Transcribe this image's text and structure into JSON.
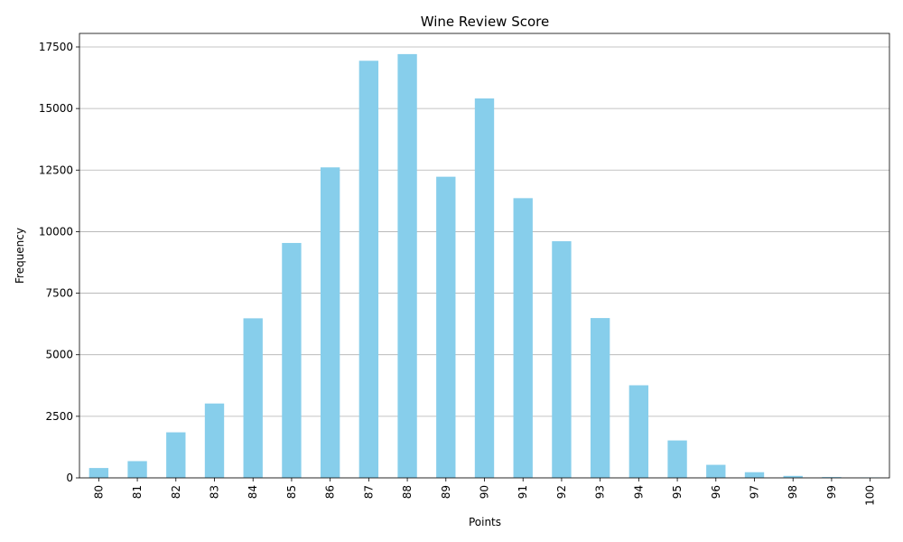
{
  "chart_data": {
    "type": "bar",
    "title": "Wine Review Score",
    "xlabel": "Points",
    "ylabel": "Frequency",
    "ylim": [
      0,
      18050
    ],
    "yticks": [
      0,
      2500,
      5000,
      7500,
      10000,
      12500,
      15000,
      17500
    ],
    "grid": "y",
    "bar_color": "#87ceeb",
    "categories": [
      "80",
      "81",
      "82",
      "83",
      "84",
      "85",
      "86",
      "87",
      "88",
      "89",
      "90",
      "91",
      "92",
      "93",
      "94",
      "95",
      "96",
      "97",
      "98",
      "99",
      "100"
    ],
    "values": [
      400,
      680,
      1850,
      3020,
      6480,
      9540,
      12610,
      16940,
      17210,
      12230,
      15410,
      11360,
      9610,
      6490,
      3760,
      1520,
      530,
      230,
      80,
      33,
      19
    ]
  }
}
